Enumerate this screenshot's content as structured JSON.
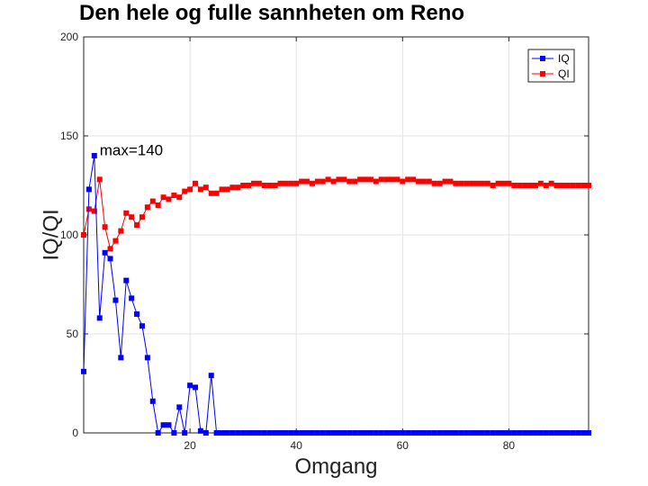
{
  "chart_data": {
    "type": "line",
    "title": "Den hele og fulle sannheten om Reno",
    "xlabel": "Omgang",
    "ylabel": "IQ/QI",
    "xlim": [
      0,
      95
    ],
    "ylim": [
      0,
      200
    ],
    "xticks": [
      20,
      40,
      60,
      80
    ],
    "yticks": [
      0,
      50,
      100,
      150,
      200
    ],
    "grid": true,
    "legend_position": "top-right",
    "annotation": {
      "text": "max=140",
      "x": 3,
      "y": 143
    },
    "series": [
      {
        "name": "IQ",
        "color": "#0000ff",
        "marker": "square",
        "x": [
          0,
          1,
          2,
          3,
          4,
          5,
          6,
          7,
          8,
          9,
          10,
          11,
          12,
          13,
          14,
          15,
          16,
          17,
          18,
          19,
          20,
          21,
          22,
          23,
          24,
          25,
          26,
          27,
          28,
          29,
          30,
          31,
          32,
          33,
          34,
          35,
          36,
          37,
          38,
          39,
          40,
          41,
          42,
          43,
          44,
          45,
          46,
          47,
          48,
          49,
          50,
          51,
          52,
          53,
          54,
          55,
          56,
          57,
          58,
          59,
          60,
          61,
          62,
          63,
          64,
          65,
          66,
          67,
          68,
          69,
          70,
          71,
          72,
          73,
          74,
          75,
          76,
          77,
          78,
          79,
          80,
          81,
          82,
          83,
          84,
          85,
          86,
          87,
          88,
          89,
          90,
          91,
          92,
          93,
          94,
          95
        ],
        "values": [
          31,
          123,
          140,
          58,
          91,
          88,
          67,
          38,
          77,
          68,
          60,
          54,
          38,
          16,
          0,
          4,
          4,
          0,
          13,
          0,
          24,
          23,
          1,
          0,
          29,
          0,
          0,
          0,
          0,
          0,
          0,
          0,
          0,
          0,
          0,
          0,
          0,
          0,
          0,
          0,
          0,
          0,
          0,
          0,
          0,
          0,
          0,
          0,
          0,
          0,
          0,
          0,
          0,
          0,
          0,
          0,
          0,
          0,
          0,
          0,
          0,
          0,
          0,
          0,
          0,
          0,
          0,
          0,
          0,
          0,
          0,
          0,
          0,
          0,
          0,
          0,
          0,
          0,
          0,
          0,
          0,
          0,
          0,
          0,
          0,
          0,
          0,
          0,
          0,
          0,
          0,
          0,
          0,
          0,
          0,
          0
        ]
      },
      {
        "name": "QI",
        "color": "#ff0000",
        "marker": "square",
        "x": [
          0,
          1,
          2,
          3,
          4,
          5,
          6,
          7,
          8,
          9,
          10,
          11,
          12,
          13,
          14,
          15,
          16,
          17,
          18,
          19,
          20,
          21,
          22,
          23,
          24,
          25,
          26,
          27,
          28,
          29,
          30,
          31,
          32,
          33,
          34,
          35,
          36,
          37,
          38,
          39,
          40,
          41,
          42,
          43,
          44,
          45,
          46,
          47,
          48,
          49,
          50,
          51,
          52,
          53,
          54,
          55,
          56,
          57,
          58,
          59,
          60,
          61,
          62,
          63,
          64,
          65,
          66,
          67,
          68,
          69,
          70,
          71,
          72,
          73,
          74,
          75,
          76,
          77,
          78,
          79,
          80,
          81,
          82,
          83,
          84,
          85,
          86,
          87,
          88,
          89,
          90,
          91,
          92,
          93,
          94,
          95
        ],
        "values": [
          100,
          113,
          112,
          128,
          104,
          93,
          97,
          102,
          111,
          109,
          105,
          109,
          114,
          117,
          115,
          119,
          118,
          120,
          119,
          122,
          123,
          126,
          123,
          124,
          121,
          121,
          123,
          123,
          124,
          124,
          125,
          125,
          126,
          126,
          125,
          125,
          125,
          126,
          126,
          126,
          126,
          127,
          127,
          126,
          127,
          127,
          128,
          127,
          128,
          128,
          127,
          127,
          128,
          128,
          128,
          127,
          128,
          128,
          128,
          128,
          127,
          128,
          128,
          127,
          127,
          127,
          126,
          126,
          127,
          127,
          126,
          126,
          126,
          126,
          126,
          126,
          126,
          125,
          126,
          126,
          126,
          125,
          125,
          125,
          125,
          125,
          126,
          125,
          126,
          125,
          125,
          125,
          125,
          125,
          125,
          125
        ]
      }
    ]
  }
}
